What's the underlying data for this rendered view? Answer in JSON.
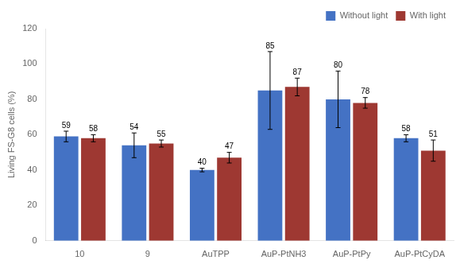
{
  "chart_data": {
    "type": "bar",
    "categories": [
      "10",
      "9",
      "AuTPP",
      "AuP-PtNH3",
      "AuP-PtPy",
      "AuP-PtCyDA"
    ],
    "series": [
      {
        "name": "Without light",
        "color": "#4472C4",
        "values": [
          59,
          54,
          40,
          85,
          80,
          58
        ],
        "errors": [
          3,
          7,
          1,
          22,
          16,
          2
        ]
      },
      {
        "name": "With light",
        "color": "#9E3832",
        "values": [
          58,
          55,
          47,
          87,
          78,
          51
        ],
        "errors": [
          2,
          2,
          3,
          5,
          3,
          6
        ]
      }
    ],
    "ylabel": "Living FS-G8 cells (%)",
    "ylim": [
      0,
      120
    ],
    "yticks": [
      0,
      20,
      40,
      60,
      80,
      100,
      120
    ],
    "grid": false,
    "legend": "upper right",
    "data_labels": true
  }
}
